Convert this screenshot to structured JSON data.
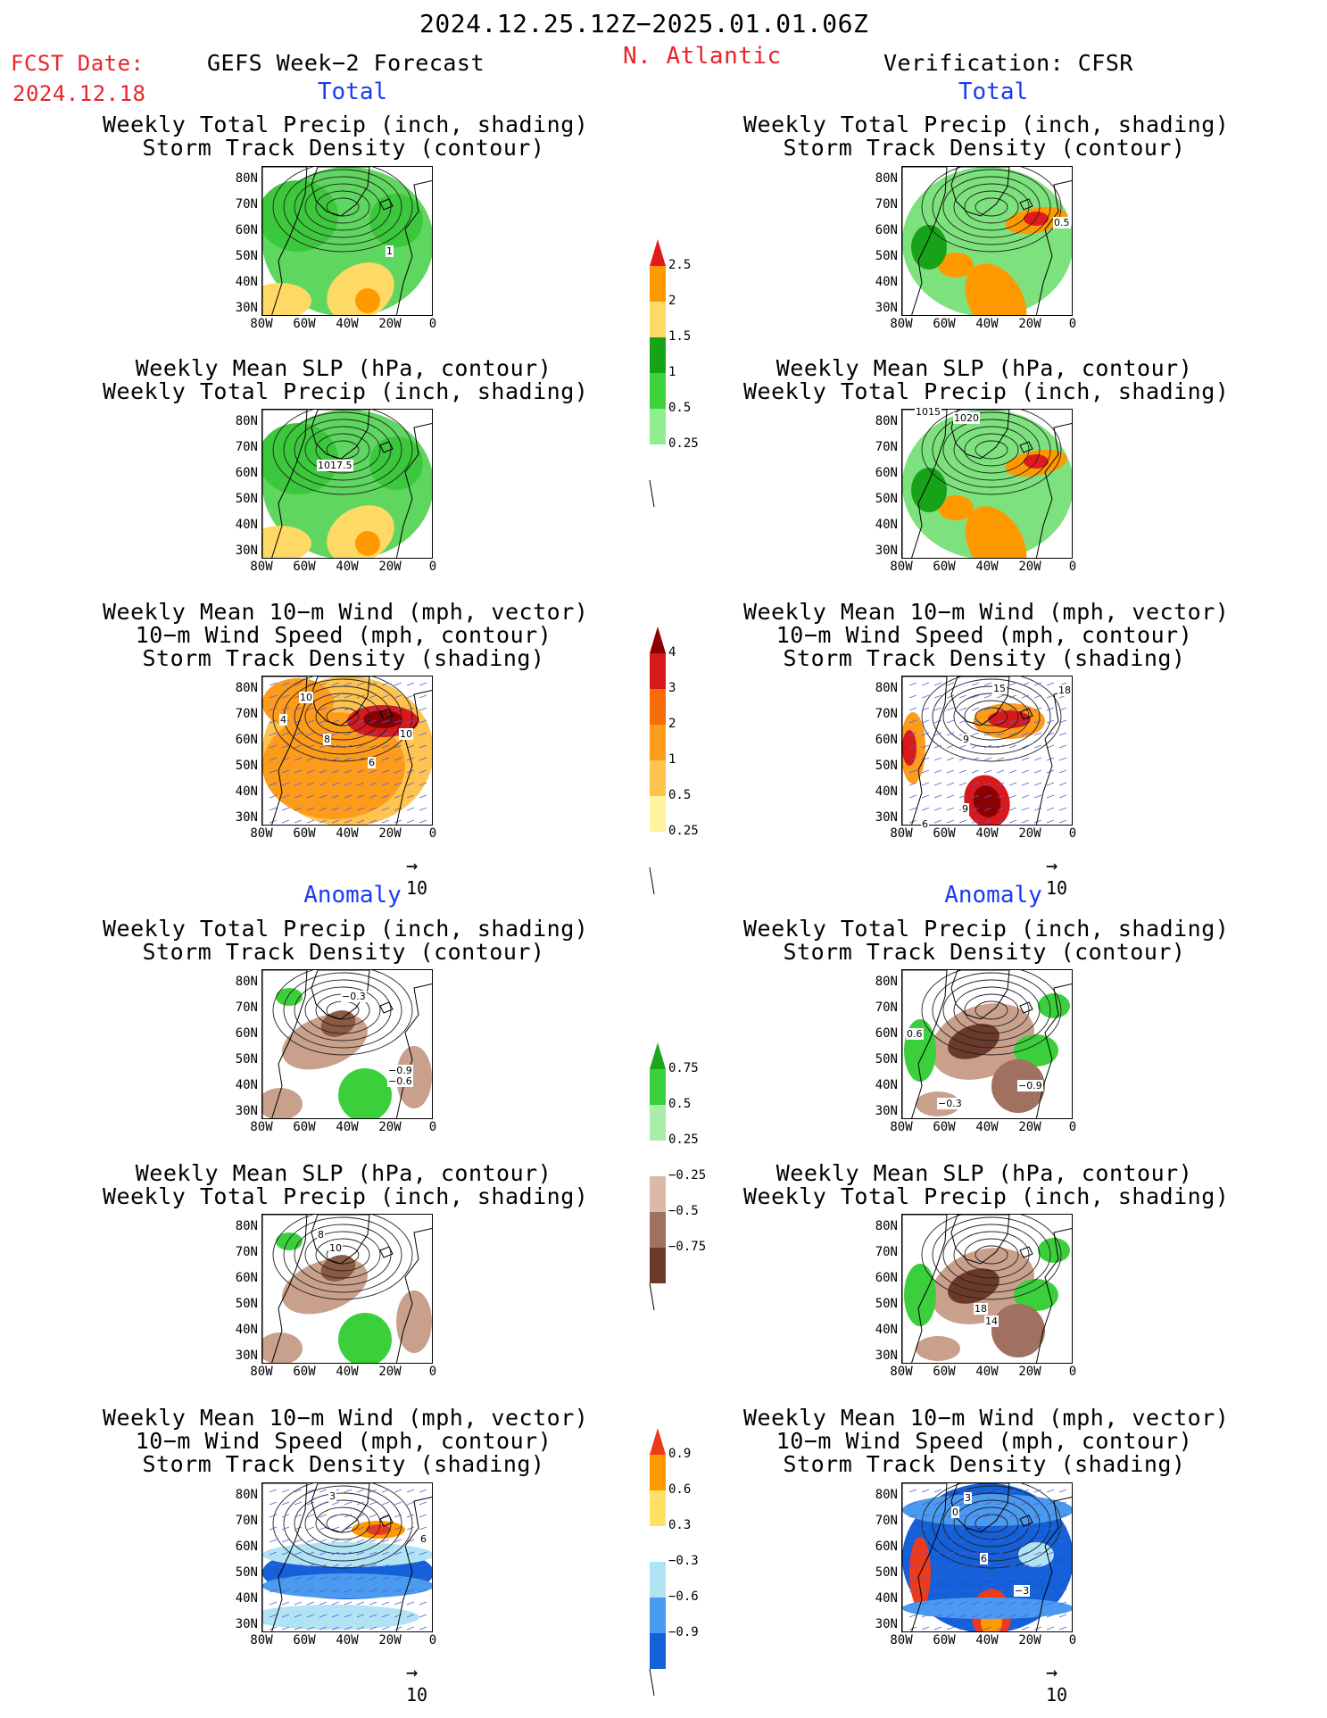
{
  "header": {
    "period": "2024.12.25.12Z−2025.01.01.06Z",
    "fcst_label": "FCST Date:",
    "fcst_date": "2024.12.18",
    "left_title": "GEFS Week−2 Forecast",
    "region": "N. Atlantic",
    "right_title": "Verification: CFSR"
  },
  "sections": {
    "total": "Total",
    "anomaly": "Anomaly"
  },
  "panel_titles": {
    "precip_storm": [
      "Weekly Total Precip (inch, shading)",
      "Storm Track Density (contour)"
    ],
    "slp_precip": [
      "Weekly Mean SLP (hPa, contour)",
      "Weekly Total Precip (inch, shading)"
    ],
    "wind_storm": [
      "Weekly Mean 10−m Wind (mph, vector)",
      "10−m Wind Speed (mph, contour)",
      "Storm Track Density (shading)"
    ]
  },
  "axes": {
    "lat_labels": [
      "80N",
      "70N",
      "60N",
      "50N",
      "40N",
      "30N"
    ],
    "lon_labels": [
      "80W",
      "60W",
      "40W",
      "20W",
      "0"
    ]
  },
  "vector_ref": "10",
  "contour_labels": {
    "l1": "1",
    "r1": "0.5",
    "l2": "1017.5",
    "r2a": "1015",
    "r2b": "1020",
    "l3a": "10",
    "l3b": "4",
    "l3c": "8",
    "l3d": "10",
    "l3e": "6",
    "r3a": "15",
    "r3b": "18",
    "r3c": "9",
    "r3d": "9",
    "r3e": "6",
    "l4a": "−0.3",
    "l4b": "−0.9",
    "l4c": "−0.6",
    "r4a": "0.6",
    "r4b": "−0.3",
    "r4c": "−0.9",
    "l5a": "8",
    "l5b": "10",
    "r5a": "18",
    "r5b": "14",
    "l6a": "3",
    "l6b": "6",
    "r6a": "3",
    "r6b": "0",
    "r6c": "6",
    "r6d": "−3"
  },
  "colorbars": {
    "precip_total": {
      "labels": [
        "2.5",
        "2",
        "1.5",
        "1",
        "0.5",
        "0.25"
      ],
      "colors": [
        "#e31a1c",
        "#ff9900",
        "#ffd966",
        "#17a317",
        "#3cd33c",
        "#90ee90",
        "#ffffff"
      ]
    },
    "storm_total": {
      "labels": [
        "4",
        "3",
        "2",
        "1",
        "0.5",
        "0.25"
      ],
      "colors": [
        "#8b0000",
        "#d7191c",
        "#f46d09",
        "#fd9b1a",
        "#fec44f",
        "#fff3a0",
        "#ffffff"
      ]
    },
    "precip_anom": {
      "labels": [
        "0.75",
        "0.5",
        "0.25",
        "−0.25",
        "−0.5",
        "−0.75"
      ],
      "colors": [
        "#1ea51e",
        "#3ccf3c",
        "#a8eea8",
        "#ffffff",
        "#dcb8a8",
        "#a07060",
        "#6b3a2a"
      ]
    },
    "storm_anom": {
      "labels": [
        "0.9",
        "0.6",
        "0.3",
        "−0.3",
        "−0.6",
        "−0.9"
      ],
      "colors": [
        "#ee3a1a",
        "#ff9900",
        "#ffe066",
        "#ffffff",
        "#b0e4f5",
        "#4a9af0",
        "#1460d8"
      ]
    }
  }
}
